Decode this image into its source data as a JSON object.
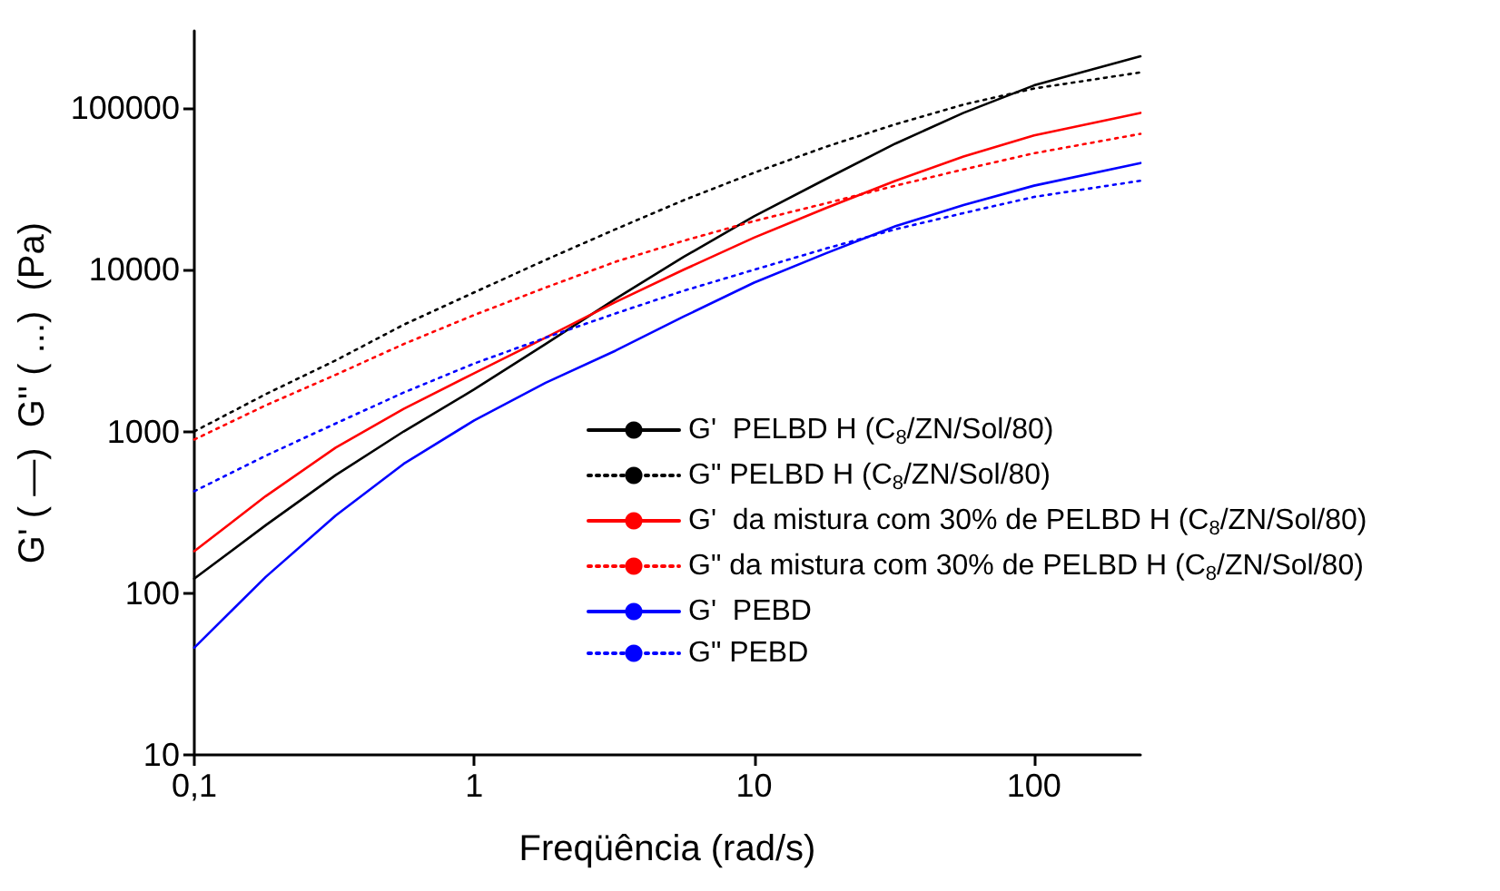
{
  "chart_data": {
    "type": "line",
    "xlabel": "Freqüência (rad/s)",
    "ylabel": "G' ( —)  G'' ( ...)  (Pa)",
    "log": "xy",
    "grid": false,
    "legend": "bottom right",
    "marker": "none",
    "xlim": [
      0.1,
      240
    ],
    "xticks": [
      {
        "value": 0.1,
        "label": "0,1"
      },
      1,
      10,
      100
    ],
    "ylim": [
      10,
      300000
    ],
    "yticks": [
      10,
      100,
      1000,
      10000,
      100000
    ],
    "x": [
      0.1,
      0.18,
      0.32,
      0.56,
      1,
      1.8,
      3.2,
      5.6,
      10,
      18,
      32,
      56,
      100,
      240
    ],
    "series": [
      {
        "name": "G'  PELBD H (C$_{8}$/ZN/Sol/80)",
        "color": "#000000",
        "line_style": "solid",
        "values": [
          123,
          263,
          537,
          1000,
          1820,
          3470,
          6610,
          12000,
          21400,
          36300,
          60300,
          93300,
          138000,
          209000
        ]
      },
      {
        "name": "G\" PELBD H (C$_{8}$/ZN/Sol/80)",
        "color": "#000000",
        "line_style": "dotted",
        "values": [
          1000,
          1700,
          2750,
          4570,
          7240,
          11500,
          17800,
          26900,
          39800,
          57500,
          79400,
          105000,
          132000,
          166000
        ]
      },
      {
        "name": "G'  da mistura com 30% de PELBD H (C$_{8}$/ZN/Sol/80)",
        "color": "#ff0000",
        "line_style": "solid",
        "values": [
          182,
          398,
          794,
          1380,
          2290,
          3800,
          6310,
          10000,
          15800,
          24000,
          35500,
          50100,
          67600,
          93300
        ]
      },
      {
        "name": "G\" da mistura com 30% de PELBD H (C$_{8}$/ZN/Sol/80)",
        "color": "#ff0000",
        "line_style": "dotted",
        "values": [
          891,
          1450,
          2240,
          3470,
          5250,
          7760,
          11200,
          15100,
          20000,
          25700,
          33100,
          41700,
          52500,
          69200
        ]
      },
      {
        "name": "G'  PEBD",
        "color": "#0000ff",
        "line_style": "solid",
        "values": [
          46,
          126,
          302,
          631,
          1170,
          2000,
          3160,
          5130,
          8320,
          12600,
          18600,
          25100,
          33100,
          45700
        ]
      },
      {
        "name": "G\" PEBD",
        "color": "#0000ff",
        "line_style": "dotted",
        "values": [
          427,
          708,
          1120,
          1740,
          2630,
          3800,
          5370,
          7410,
          10000,
          13500,
          17800,
          22400,
          28200,
          35500
        ]
      }
    ]
  }
}
